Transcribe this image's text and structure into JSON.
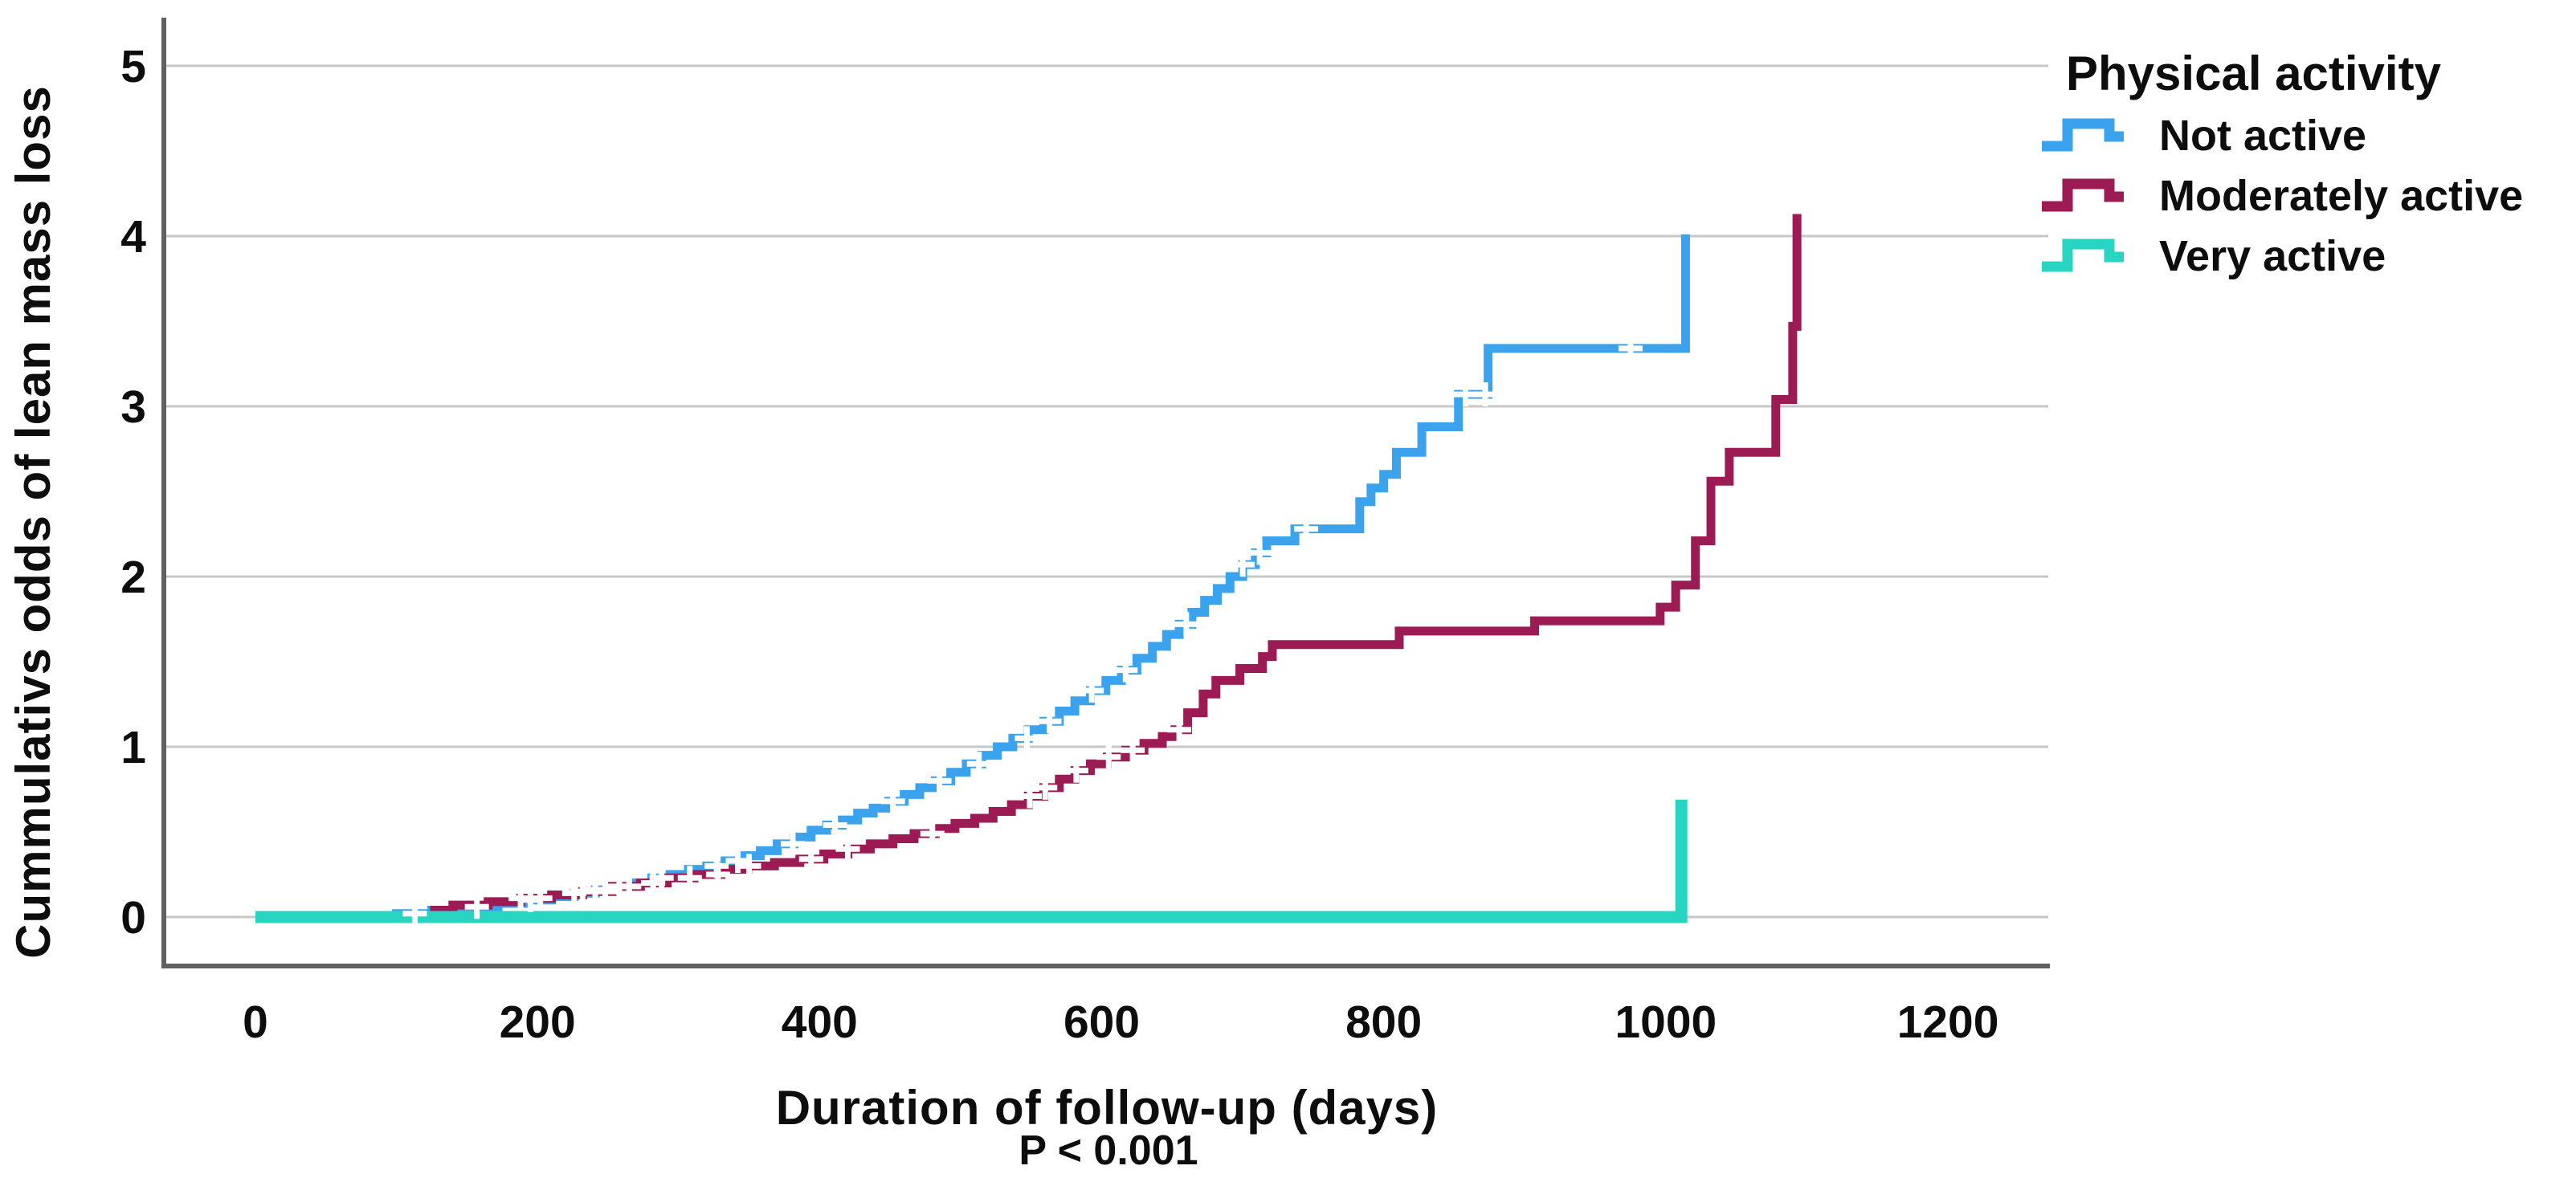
{
  "chart_data": {
    "type": "line",
    "subtype": "step-cumulative-hazard",
    "title": "",
    "xlabel": "Duration of follow-up (days)",
    "ylabel": "Cummulativs odds of lean mass loss",
    "annotation": "P < 0.001",
    "legend_title": "Physical activity",
    "x_ticks": [
      0,
      200,
      400,
      600,
      800,
      1000,
      1200
    ],
    "y_ticks": [
      0,
      1,
      2,
      3,
      4,
      5
    ],
    "xlim": [
      0,
      1272
    ],
    "ylim": [
      0,
      5.3
    ],
    "grid": "horizontal",
    "legend_position": "top-right-outside",
    "background": "#ffffff",
    "grid_color": "#c7c7c7",
    "axis_color": "#606060",
    "text_color": "#0d0d0d",
    "censor_marker_color": "#ffffff",
    "series": [
      {
        "name": "Not active",
        "color": "#3BA3EE",
        "points": [
          [
            0,
            0
          ],
          [
            100,
            0.02
          ],
          [
            125,
            0.04
          ],
          [
            150,
            0.06
          ],
          [
            172,
            0.08
          ],
          [
            193,
            0.1
          ],
          [
            210,
            0.12
          ],
          [
            226,
            0.14
          ],
          [
            241,
            0.16
          ],
          [
            255,
            0.18
          ],
          [
            268,
            0.2
          ],
          [
            281,
            0.23
          ],
          [
            294,
            0.25
          ],
          [
            307,
            0.28
          ],
          [
            320,
            0.3
          ],
          [
            333,
            0.33
          ],
          [
            346,
            0.36
          ],
          [
            358,
            0.39
          ],
          [
            370,
            0.43
          ],
          [
            382,
            0.47
          ],
          [
            394,
            0.51
          ],
          [
            405,
            0.54
          ],
          [
            416,
            0.57
          ],
          [
            427,
            0.61
          ],
          [
            438,
            0.64
          ],
          [
            449,
            0.68
          ],
          [
            460,
            0.72
          ],
          [
            471,
            0.76
          ],
          [
            482,
            0.8
          ],
          [
            493,
            0.85
          ],
          [
            504,
            0.9
          ],
          [
            515,
            0.95
          ],
          [
            526,
            1.0
          ],
          [
            537,
            1.05
          ],
          [
            548,
            1.1
          ],
          [
            559,
            1.15
          ],
          [
            570,
            1.21
          ],
          [
            581,
            1.27
          ],
          [
            592,
            1.33
          ],
          [
            603,
            1.39
          ],
          [
            614,
            1.45
          ],
          [
            625,
            1.52
          ],
          [
            636,
            1.59
          ],
          [
            646,
            1.66
          ],
          [
            655,
            1.72
          ],
          [
            664,
            1.79
          ],
          [
            673,
            1.86
          ],
          [
            682,
            1.93
          ],
          [
            691,
            2.0
          ],
          [
            700,
            2.07
          ],
          [
            709,
            2.14
          ],
          [
            717,
            2.21
          ],
          [
            737,
            2.28
          ],
          [
            783,
            2.44
          ],
          [
            791,
            2.52
          ],
          [
            800,
            2.6
          ],
          [
            809,
            2.73
          ],
          [
            827,
            2.88
          ],
          [
            853,
            3.07
          ],
          [
            874,
            3.34
          ],
          [
            1014,
            4.01
          ]
        ],
        "censors": [
          113,
          157,
          195,
          226,
          241,
          258,
          288,
          327,
          342,
          381,
          411,
          452,
          485,
          513,
          547,
          563,
          593,
          617,
          660,
          700,
          712,
          745,
          858,
          872,
          975
        ]
      },
      {
        "name": "Moderately active",
        "color": "#9C1B55",
        "points": [
          [
            0,
            0
          ],
          [
            127,
            0.04
          ],
          [
            140,
            0.07
          ],
          [
            165,
            0.09
          ],
          [
            188,
            0.11
          ],
          [
            210,
            0.13
          ],
          [
            232,
            0.15
          ],
          [
            253,
            0.18
          ],
          [
            273,
            0.2
          ],
          [
            292,
            0.23
          ],
          [
            311,
            0.25
          ],
          [
            330,
            0.28
          ],
          [
            349,
            0.3
          ],
          [
            368,
            0.32
          ],
          [
            386,
            0.34
          ],
          [
            403,
            0.37
          ],
          [
            420,
            0.4
          ],
          [
            436,
            0.43
          ],
          [
            452,
            0.46
          ],
          [
            467,
            0.49
          ],
          [
            482,
            0.52
          ],
          [
            496,
            0.55
          ],
          [
            510,
            0.58
          ],
          [
            523,
            0.62
          ],
          [
            536,
            0.66
          ],
          [
            548,
            0.71
          ],
          [
            559,
            0.76
          ],
          [
            570,
            0.81
          ],
          [
            581,
            0.86
          ],
          [
            592,
            0.9
          ],
          [
            604,
            0.94
          ],
          [
            617,
            0.98
          ],
          [
            630,
            1.02
          ],
          [
            643,
            1.06
          ],
          [
            652,
            1.1
          ],
          [
            661,
            1.2
          ],
          [
            672,
            1.31
          ],
          [
            681,
            1.39
          ],
          [
            698,
            1.46
          ],
          [
            714,
            1.53
          ],
          [
            721,
            1.6
          ],
          [
            811,
            1.68
          ],
          [
            907,
            1.74
          ],
          [
            996,
            1.82
          ],
          [
            1007,
            1.95
          ],
          [
            1021,
            2.21
          ],
          [
            1032,
            2.56
          ],
          [
            1045,
            2.73
          ],
          [
            1078,
            3.04
          ],
          [
            1090,
            3.47
          ],
          [
            1093,
            4.13
          ]
        ],
        "censors": [
          188,
          202,
          232,
          248,
          265,
          282,
          308,
          328,
          350,
          394,
          420,
          480,
          549,
          560,
          582,
          605,
          622,
          655
        ]
      },
      {
        "name": "Very active",
        "color": "#28D5C3",
        "points": [
          [
            0,
            0
          ],
          [
            1011,
            0
          ],
          [
            1011,
            0.69
          ]
        ],
        "censors": []
      }
    ]
  }
}
